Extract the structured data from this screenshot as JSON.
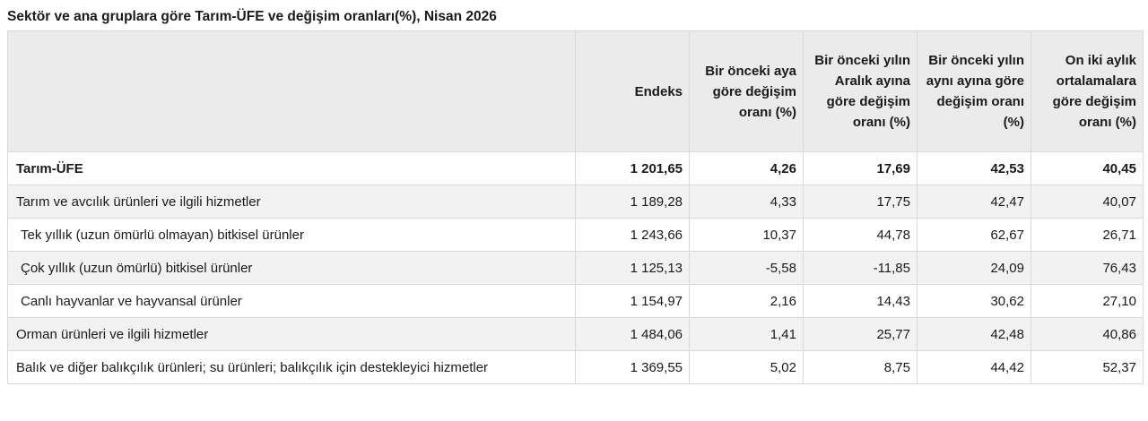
{
  "title": "Sektör ve ana gruplara göre Tarım-ÜFE ve değişim oranları(%), Nisan 2026",
  "table": {
    "headers": [
      "",
      "Endeks",
      "Bir önceki aya göre değişim oranı (%)",
      "Bir önceki yılın Aralık ayına göre değişim oranı (%)",
      "Bir önceki yılın aynı ayına göre değişim oranı (%)",
      "On iki aylık ortalamalara göre değişim oranı (%)"
    ],
    "rows": [
      {
        "label": "Tarım-ÜFE",
        "values": [
          "1 201,65",
          "4,26",
          "17,69",
          "42,53",
          "40,45"
        ]
      },
      {
        "label": "Tarım ve avcılık ürünleri ve ilgili hizmetler",
        "values": [
          "1 189,28",
          "4,33",
          "17,75",
          "42,47",
          "40,07"
        ]
      },
      {
        "label": "Tek yıllık (uzun ömürlü olmayan) bitkisel ürünler",
        "values": [
          "1 243,66",
          "10,37",
          "44,78",
          "62,67",
          "26,71"
        ]
      },
      {
        "label": "Çok yıllık (uzun ömürlü) bitkisel ürünler",
        "values": [
          "1 125,13",
          "-5,58",
          "-11,85",
          "24,09",
          "76,43"
        ]
      },
      {
        "label": "Canlı hayvanlar ve hayvansal ürünler",
        "values": [
          "1 154,97",
          "2,16",
          "14,43",
          "30,62",
          "27,10"
        ]
      },
      {
        "label": "Orman ürünleri ve ilgili hizmetler",
        "values": [
          "1 484,06",
          "1,41",
          "25,77",
          "42,48",
          "40,86"
        ]
      },
      {
        "label": "Balık ve diğer balıkçılık ürünleri; su ürünleri; balıkçılık için destekleyici hizmetler",
        "values": [
          "1 369,55",
          "5,02",
          "8,75",
          "44,42",
          "52,37"
        ]
      }
    ]
  }
}
